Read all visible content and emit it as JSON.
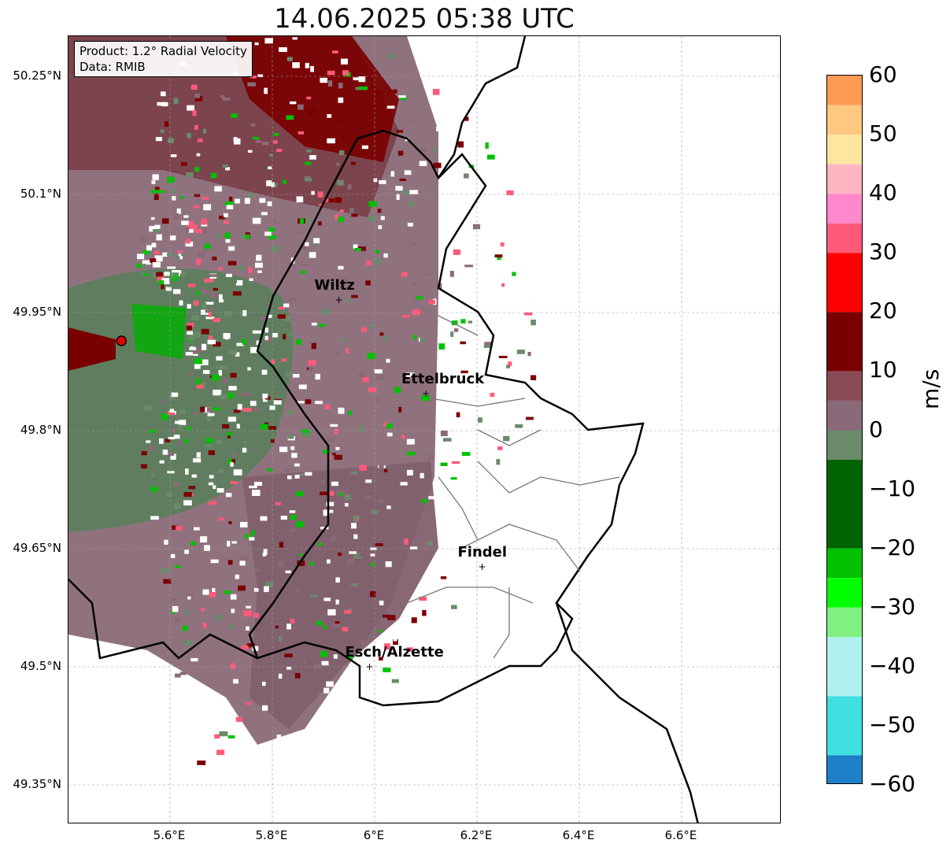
{
  "title": "14.06.2025 05:38 UTC",
  "info": {
    "product": "Product: 1.2° Radial Velocity",
    "data": "Data: RMIB"
  },
  "y_ticks": [
    "50.25°N",
    "50.1°N",
    "49.95°N",
    "49.8°N",
    "49.65°N",
    "49.5°N",
    "49.35°N"
  ],
  "x_ticks": [
    "5.6°E",
    "5.8°E",
    "6°E",
    "6.2°E",
    "6.4°E",
    "6.6°E"
  ],
  "cities": [
    {
      "name": "Wiltz",
      "lon": 5.93,
      "lat": 49.966
    },
    {
      "name": "Ettelbruck",
      "lon": 6.1,
      "lat": 49.847
    },
    {
      "name": "Findel",
      "lon": 6.21,
      "lat": 49.627
    },
    {
      "name": "Esch/Alzette",
      "lon": 5.99,
      "lat": 49.5
    }
  ],
  "radar_site": {
    "lon": 5.505,
    "lat": 49.914
  },
  "colorbar": {
    "unit": "m/s",
    "min": -60,
    "max": 60,
    "ticks": [
      "60",
      "50",
      "40",
      "30",
      "20",
      "10",
      "0",
      "−10",
      "−20",
      "−30",
      "−40",
      "−50",
      "−60"
    ],
    "colors": {
      "high_orange": "#ff9a55",
      "peach": "#ffc880",
      "light_yellow": "#ffe6a0",
      "light_pink": "#ffb6c1",
      "pink": "#ff88cc",
      "rose": "#ff5a78",
      "red": "#ff0000",
      "dark_red": "#7a0000",
      "maroon_gray": "#8a4a55",
      "mauve": "#8a6a78",
      "gray_green": "#6a8a6a",
      "dark_green": "#006400",
      "green": "#00c000",
      "bright_green": "#00ff00",
      "light_green": "#80f080",
      "pale_cyan": "#b0f0f0",
      "cyan": "#40e0e0",
      "blue": "#1e80c8"
    }
  }
}
